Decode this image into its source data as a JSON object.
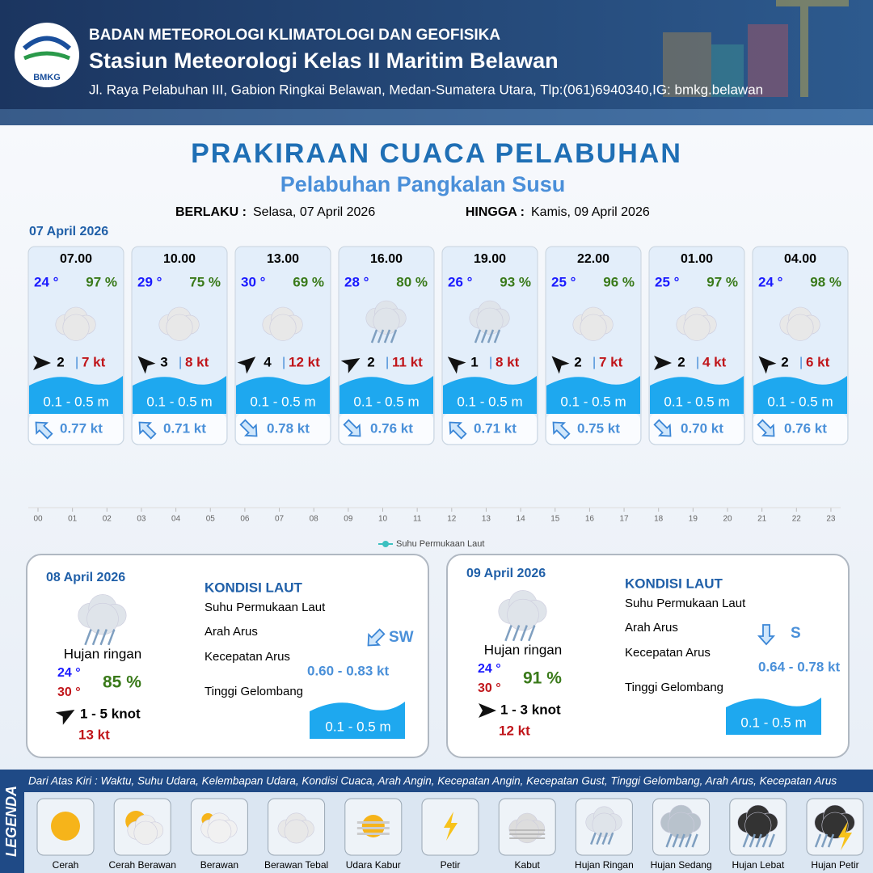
{
  "header": {
    "logo": "BMKG",
    "agency": "BADAN METEOROLOGI KLIMATOLOGI DAN GEOFISIKA",
    "station": "Stasiun Meteorologi Kelas II Maritim Belawan",
    "address": "Jl. Raya Pelabuhan III, Gabion Ringkai Belawan, Medan-Sumatera Utara, Tlp:(061)6940340,IG: bmkg.belawan"
  },
  "title": "PRAKIRAAN CUACA PELABUHAN",
  "subtitle": "Pelabuhan Pangkalan Susu",
  "valid": {
    "from_label": "BERLAKU :",
    "from": "Selasa, 07 April 2026",
    "to_label": "HINGGA :",
    "to": "Kamis, 09 April 2026"
  },
  "day1": {
    "date": "07 April 2026",
    "forecasts": [
      {
        "time": "07.00",
        "temp": "24 °",
        "humidity": "97 %",
        "wind": "2",
        "gust": "7 kt",
        "wave": "0.1 - 0.5 m",
        "current": "0.77 kt"
      },
      {
        "time": "10.00",
        "temp": "29 °",
        "humidity": "75 %",
        "wind": "3",
        "gust": "8 kt",
        "wave": "0.1 - 0.5 m",
        "current": "0.71 kt"
      },
      {
        "time": "13.00",
        "temp": "30 °",
        "humidity": "69 %",
        "wind": "4",
        "gust": "12 kt",
        "wave": "0.1 - 0.5 m",
        "current": "0.78 kt"
      },
      {
        "time": "16.00",
        "temp": "28 °",
        "humidity": "80 %",
        "wind": "2",
        "gust": "11 kt",
        "wave": "0.1 - 0.5 m",
        "current": "0.76 kt"
      },
      {
        "time": "19.00",
        "temp": "26 °",
        "humidity": "93 %",
        "wind": "1",
        "gust": "8 kt",
        "wave": "0.1 - 0.5 m",
        "current": "0.71 kt"
      },
      {
        "time": "22.00",
        "temp": "25 °",
        "humidity": "96 %",
        "wind": "2",
        "gust": "7 kt",
        "wave": "0.1 - 0.5 m",
        "current": "0.75 kt"
      },
      {
        "time": "01.00",
        "temp": "25 °",
        "humidity": "97 %",
        "wind": "2",
        "gust": "4 kt",
        "wave": "0.1 - 0.5 m",
        "current": "0.70 kt"
      },
      {
        "time": "04.00",
        "temp": "24 °",
        "humidity": "98 %",
        "wind": "2",
        "gust": "6 kt",
        "wave": "0.1 - 0.5 m",
        "current": "0.76 kt"
      }
    ]
  },
  "sst_chart": {
    "hours": [
      "00",
      "01",
      "02",
      "03",
      "04",
      "05",
      "06",
      "07",
      "08",
      "09",
      "10",
      "11",
      "12",
      "13",
      "14",
      "15",
      "16",
      "17",
      "18",
      "19",
      "20",
      "21",
      "22",
      "23"
    ],
    "legend": "Suhu Permukaan Laut"
  },
  "days": [
    {
      "date": "08 April 2026",
      "weather": "Hujan ringan",
      "tmin": "24 °",
      "tmax": "30 °",
      "humidity": "85 %",
      "wind": "1 - 5 knot",
      "gust": "13 kt",
      "sea_title": "KONDISI LAUT",
      "sst_label": "Suhu Permukaan Laut",
      "dir_label": "Arah Arus",
      "speed_label": "Kecepatan Arus",
      "wave_label": "Tinggi Gelombang",
      "current_dir": "SW",
      "current_speed": "0.60 - 0.83 kt",
      "wave": "0.1 - 0.5 m"
    },
    {
      "date": "09 April 2026",
      "weather": "Hujan ringan",
      "tmin": "24 °",
      "tmax": "30 °",
      "humidity": "91 %",
      "wind": "1 - 3 knot",
      "gust": "12 kt",
      "sea_title": "KONDISI LAUT",
      "sst_label": "Suhu Permukaan Laut",
      "dir_label": "Arah Arus",
      "speed_label": "Kecepatan Arus",
      "wave_label": "Tinggi Gelombang",
      "current_dir": "S",
      "current_speed": "0.64 - 0.78 kt",
      "wave": "0.1 - 0.5 m"
    }
  ],
  "legend": {
    "title": "LEGENDA",
    "caption": "Dari Atas Kiri : Waktu, Suhu Udara, Kelembapan Udara, Kondisi Cuaca, Arah Angin, Kecepatan Angin, Kecepatan Gust, Tinggi Gelombang, Arah Arus, Kecepatan Arus",
    "items": [
      "Cerah",
      "Cerah Berawan",
      "Berawan",
      "Berawan Tebal",
      "Udara Kabur",
      "Petir",
      "Kabut",
      "Hujan Ringan",
      "Hujan Sedang",
      "Hujan Lebat",
      "Hujan Petir"
    ]
  }
}
